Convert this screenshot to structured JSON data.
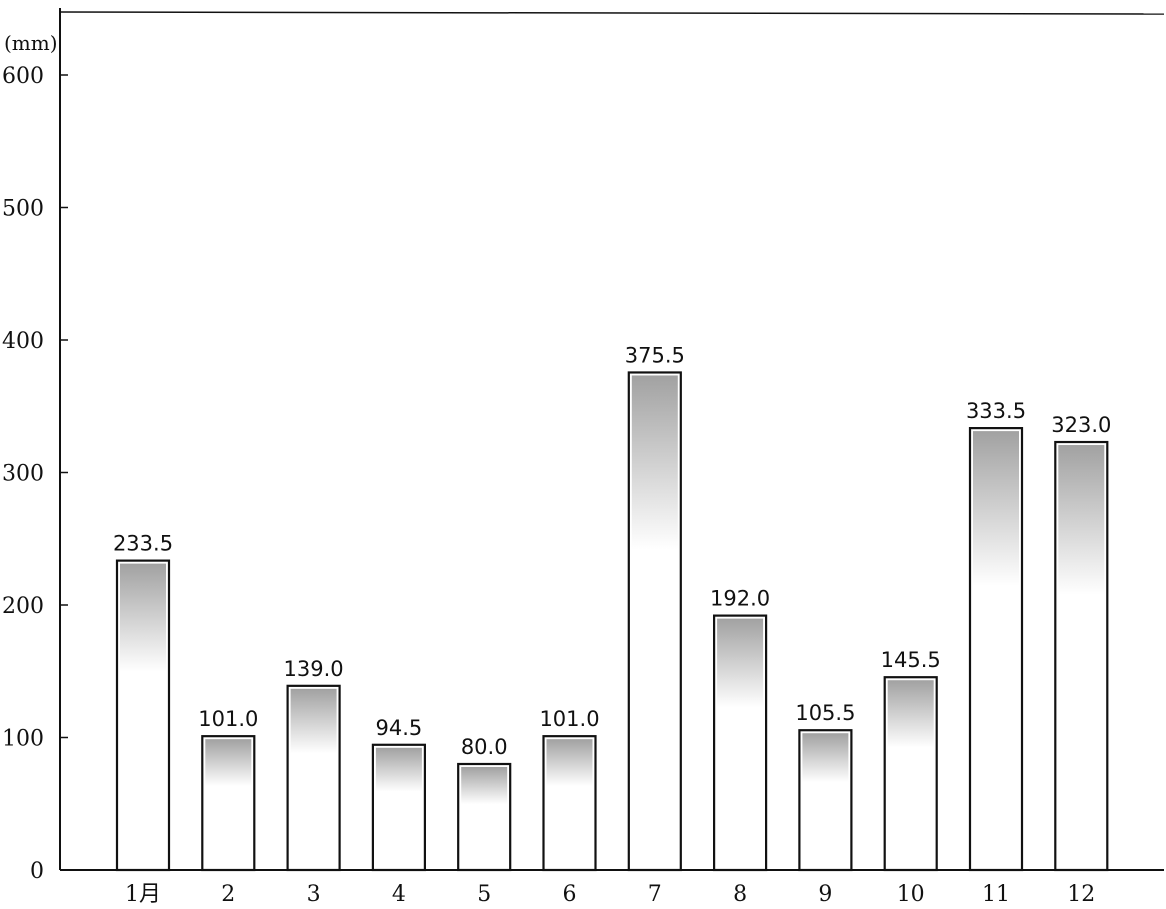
{
  "chart_data": {
    "type": "bar",
    "categories": [
      "1月",
      "2",
      "3",
      "4",
      "5",
      "6",
      "7",
      "8",
      "9",
      "10",
      "11",
      "12"
    ],
    "values": [
      233.5,
      101.0,
      139.0,
      94.5,
      80.0,
      101.0,
      375.5,
      192.0,
      105.5,
      145.5,
      333.5,
      323.0
    ],
    "value_labels": [
      "233.5",
      "101.0",
      "139.0",
      "94.5",
      "80.0",
      "101.0",
      "375.5",
      "192.0",
      "105.5",
      "145.5",
      "333.5",
      "323.0"
    ],
    "y_unit": "(mm)",
    "yticks": [
      0,
      100,
      200,
      300,
      400,
      500,
      600
    ],
    "ylim": [
      0,
      650
    ],
    "grid": false,
    "legend": "none",
    "colors": {
      "bar_fill": "#ffffff",
      "bar_stroke": "#111111",
      "shading": "#555555"
    }
  }
}
